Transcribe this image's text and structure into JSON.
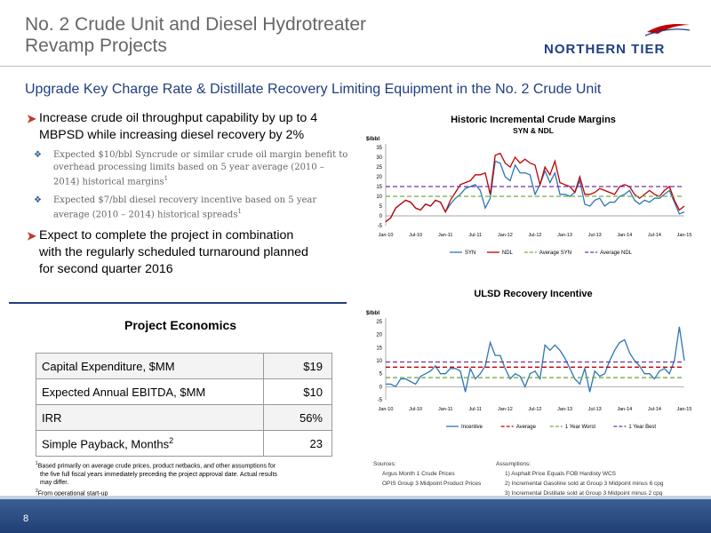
{
  "header": {
    "title_line1": "No. 2 Crude Unit and Diesel Hydrotreater",
    "title_line2": "Revamp Projects",
    "logo_text": "NORTHERN TIER",
    "subtitle": "Upgrade Key Charge Rate & Distillate Recovery Limiting Equipment in the No. 2 Crude Unit"
  },
  "bullets": {
    "b1_line1": "Increase crude oil throughput capability by up to 4",
    "b1_line2": "MBPSD while increasing diesel recovery by 2%",
    "sub1_line1": "Expected $10/bbl Syncrude or similar crude oil margin benefit to",
    "sub1_line2": "overhead processing limits based on 5 year average (2010 –",
    "sub1_line3": "2014) historical margins",
    "sub1_sup": "1",
    "sub2_line1": "Expected $7/bbl diesel recovery incentive based on 5 year",
    "sub2_line2": "average (2010 – 2014) historical spreads",
    "sub2_sup": "1",
    "b2_line1": "Expect to complete the project in combination",
    "b2_line2": "with the regularly scheduled turnaround planned",
    "b2_line3": "for second quarter 2016"
  },
  "economics": {
    "title": "Project Economics",
    "rows": [
      {
        "label": "Capital Expenditure, $MM",
        "value": "$19"
      },
      {
        "label": "Expected Annual EBITDA, $MM",
        "value": "$10"
      },
      {
        "label": "IRR",
        "value": "56%"
      },
      {
        "label": "Simple Payback, Months",
        "sup": "2",
        "value": "23"
      }
    ]
  },
  "footnotes": {
    "fn1_mark": "1",
    "fn1_line1": "Based primarily on average crude prices, product netbacks, and other assumptions for",
    "fn1_line2": "the five full fiscal years immediately preceding the project approval date.  Actual results",
    "fn1_line3": "may differ.",
    "fn2_mark": "2",
    "fn2_line1": "From operational start-up"
  },
  "sources": {
    "sources_label": "Sources:",
    "src1": "Argus Month 1 Crude Prices",
    "src2": "OPIS Group 3 Midpoint Product Prices",
    "assumptions_label": "Assumptions:",
    "a1": "1)  Asphalt Price Equals FOB Hardisty WCS",
    "a2": "2)  Incremental Gasoline sold at Group 3 Midpoint minus 6 cpg",
    "a3": "3)  Incremental Distillate sold at Group 3 Midpoint minus 2 cpg"
  },
  "footer": {
    "page_number": "8"
  },
  "colors": {
    "navy": "#1f3f7f",
    "syn": "#2e75b6",
    "ndl": "#c00000",
    "avg_syn": "#70ad47",
    "avg_ndl": "#7030a0",
    "avg": "#c00000",
    "worst": "#70ad47",
    "best": "#7030a0"
  },
  "chart_data": [
    {
      "type": "line",
      "title": "Historic Incremental Crude Margins",
      "subtitle": "SYN & NDL",
      "ylabel": "$/bbl",
      "ylim": [
        -5,
        35
      ],
      "yticks": [
        -5,
        0,
        5,
        10,
        15,
        20,
        25,
        30,
        35
      ],
      "xticks": [
        "Jan-10",
        "Jul-10",
        "Jan-11",
        "Jul-11",
        "Jan-12",
        "Jul-12",
        "Jan-13",
        "Jul-13",
        "Jan-14",
        "Jul-14",
        "Jan-15"
      ],
      "n_points": 61,
      "series": [
        {
          "name": "SYN",
          "style": "solid",
          "values": [
            -3,
            -1,
            4,
            6,
            8,
            7,
            4,
            3,
            6,
            5,
            8,
            7,
            2,
            6,
            9,
            11,
            14,
            15,
            16,
            13,
            4,
            9,
            28,
            27,
            20,
            18,
            26,
            22,
            22,
            21,
            11,
            16,
            23,
            17,
            22,
            11,
            11,
            10,
            12,
            18,
            6,
            5,
            8,
            9,
            5,
            7,
            7,
            10,
            11,
            13,
            8,
            6,
            8,
            7,
            9,
            9,
            11,
            13,
            7,
            1,
            2
          ]
        },
        {
          "name": "NDL",
          "style": "solid",
          "values": [
            -3,
            -1,
            4,
            6,
            8,
            7,
            4,
            3,
            6,
            5,
            8,
            7,
            2,
            8,
            12,
            16,
            17,
            18,
            21,
            21,
            22,
            11,
            31,
            32,
            27,
            25,
            30,
            27,
            29,
            27,
            26,
            16,
            25,
            21,
            28,
            17,
            16,
            15,
            12,
            20,
            11,
            11,
            12,
            14,
            13,
            12,
            11,
            15,
            16,
            15,
            11,
            9,
            11,
            13,
            11,
            10,
            13,
            15,
            8,
            3,
            5
          ]
        },
        {
          "name": "Average SYN",
          "style": "dashed",
          "values": [
            10
          ]
        },
        {
          "name": "Average NDL",
          "style": "dashed",
          "values": [
            15
          ]
        }
      ],
      "legend": "bottom"
    },
    {
      "type": "line",
      "title": "ULSD Recovery Incentive",
      "ylabel": "$/bbl",
      "ylim": [
        -5,
        25
      ],
      "yticks": [
        -5,
        0,
        5,
        10,
        15,
        20,
        25
      ],
      "xticks": [
        "Jan-10",
        "Jul-10",
        "Jan-11",
        "Jul-11",
        "Jan-12",
        "Jul-12",
        "Jan-13",
        "Jul-13",
        "Jan-14",
        "Jul-14",
        "Jan-15"
      ],
      "n_points": 61,
      "series": [
        {
          "name": "Incentive",
          "style": "solid",
          "values": [
            1,
            1,
            0,
            3,
            3,
            2,
            1,
            4,
            5,
            6,
            8,
            5,
            5,
            7,
            7,
            6,
            -2,
            7,
            3,
            5,
            8,
            17,
            12,
            12,
            7,
            3,
            5,
            4,
            0,
            5,
            6,
            3,
            16,
            14,
            16,
            14,
            11,
            7,
            3,
            1,
            7,
            -2,
            6,
            4,
            5,
            10,
            14,
            17,
            18,
            13,
            10,
            8,
            5,
            5,
            3,
            6,
            7,
            5,
            10,
            23,
            10
          ]
        },
        {
          "name": "Average",
          "style": "dashed",
          "values": [
            7.5
          ]
        },
        {
          "name": "1 Year Worst",
          "style": "dashed",
          "values": [
            3.5
          ]
        },
        {
          "name": "1 Year Best",
          "style": "dashed",
          "values": [
            9.5
          ]
        }
      ],
      "legend": "bottom"
    }
  ]
}
